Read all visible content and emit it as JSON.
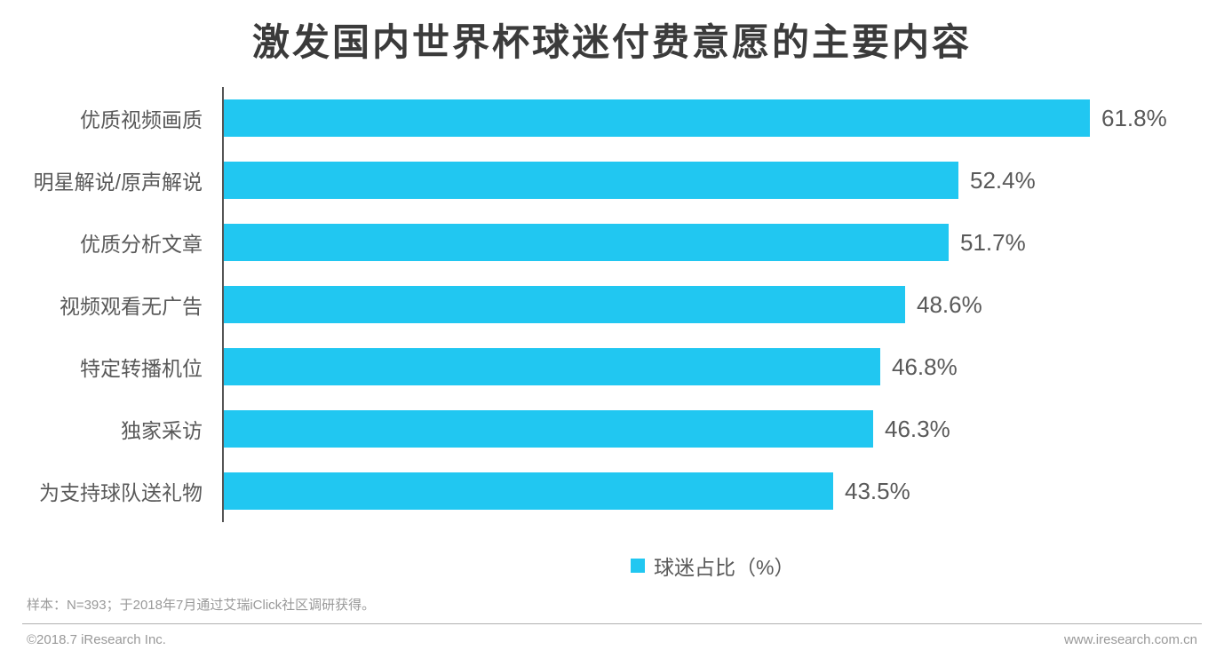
{
  "chart_data": {
    "type": "bar",
    "orientation": "horizontal",
    "title": "激发国内世界杯球迷付费意愿的主要内容",
    "categories": [
      "优质视频画质",
      "明星解说/原声解说",
      "优质分析文章",
      "视频观看无广告",
      "特定转播机位",
      "独家采访",
      "为支持球队送礼物"
    ],
    "values": [
      61.8,
      52.4,
      51.7,
      48.6,
      46.8,
      46.3,
      43.5
    ],
    "value_labels": [
      "61.8%",
      "52.4%",
      "51.7%",
      "48.6%",
      "46.8%",
      "46.3%",
      "43.5%"
    ],
    "unit": "%",
    "xlim": [
      0,
      70
    ],
    "grid": false,
    "bar_color": "#21c7f1",
    "legend_position": "bottom",
    "legend": [
      {
        "label": "球迷占比（%）",
        "color": "#21c7f1"
      }
    ]
  },
  "colors": {
    "bar": "#21c7f1",
    "title_text": "#3b3b3b",
    "axis_line": "#555555",
    "label_text": "#595959",
    "footer_text": "#999999"
  },
  "footer": {
    "sample_note": "样本：N=393；于2018年7月通过艾瑞iClick社区调研获得。",
    "copyright": "©2018.7 iResearch Inc.",
    "website": "www.iresearch.com.cn"
  }
}
